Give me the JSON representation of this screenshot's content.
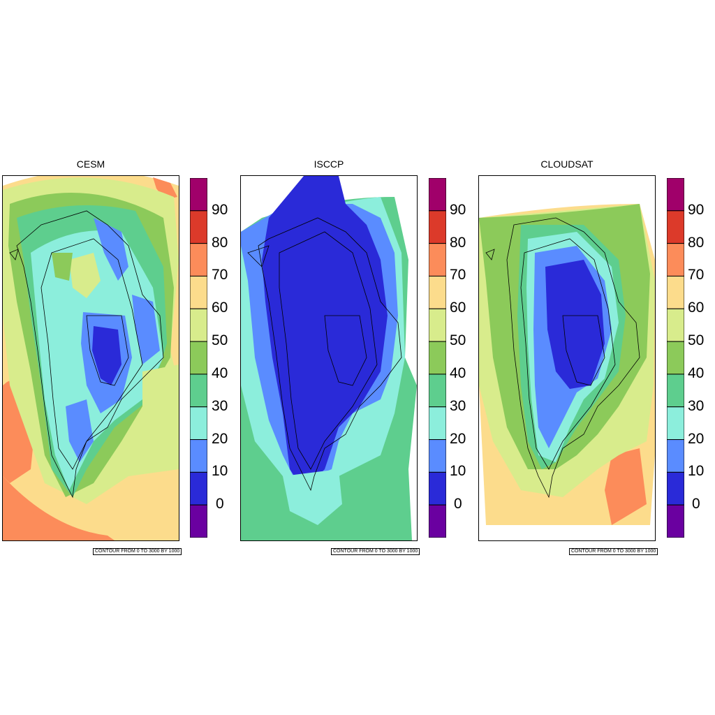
{
  "panels": [
    {
      "title": "CESM",
      "contour_note": "CONTOUR FROM 0 TO 3000 BY 1000"
    },
    {
      "title": "ISCCP",
      "contour_note": "CONTOUR FROM 0 TO 3000 BY 1000"
    },
    {
      "title": "CLOUDSAT",
      "contour_note": "CONTOUR FROM 0 TO 3000 BY 1000"
    }
  ],
  "colorbar": {
    "labels": [
      "90",
      "80",
      "70",
      "60",
      "50",
      "40",
      "30",
      "20",
      "10",
      "0"
    ],
    "colors": [
      "#6a00a0",
      "#2a2ad8",
      "#5a8cff",
      "#8ceedc",
      "#5ece8e",
      "#8cca5a",
      "#d8ec8c",
      "#fcdc8c",
      "#fc8c5a",
      "#dc3a2a",
      "#a0006a"
    ]
  }
}
